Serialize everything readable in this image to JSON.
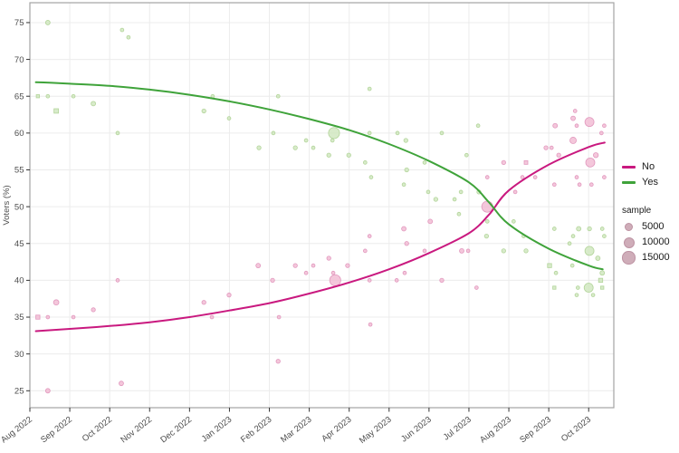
{
  "chart_data": {
    "type": "scatter",
    "title": "",
    "xlabel": "",
    "ylabel": "Voters (%)",
    "x_tick_labels": [
      "Aug 2022",
      "Sep 2022",
      "Oct 2022",
      "Nov 2022",
      "Dec 2022",
      "Jan 2023",
      "Feb 2023",
      "Mar 2023",
      "Apr 2023",
      "May 2023",
      "Jun 2023",
      "Jul 2023",
      "Aug 2023",
      "Sep 2023",
      "Oct 2023"
    ],
    "x_unit": "months since Aug 2022",
    "xlim": [
      0,
      14.63
    ],
    "ylim": [
      22.7,
      77.7
    ],
    "y_ticks": [
      25,
      30,
      35,
      40,
      45,
      50,
      55,
      60,
      65,
      70,
      75
    ],
    "grid": true,
    "legend_position": "right",
    "series": [
      {
        "name": "No",
        "line_color": "#c9197f",
        "point_fill": "#f1b7d1",
        "point_stroke": "#dd8cb6",
        "points": [
          [
            0.2,
            35,
            2500,
            "sq"
          ],
          [
            0.45,
            35,
            1500
          ],
          [
            0.45,
            25,
            2500
          ],
          [
            0.66,
            37,
            3500
          ],
          [
            1.09,
            35,
            1500
          ],
          [
            1.59,
            36,
            2000
          ],
          [
            2.2,
            40,
            1500
          ],
          [
            2.29,
            26,
            2500
          ],
          [
            4.36,
            37,
            2000
          ],
          [
            4.56,
            35,
            1500
          ],
          [
            4.99,
            38,
            2000
          ],
          [
            5.72,
            42,
            2500
          ],
          [
            6.08,
            40,
            2000
          ],
          [
            6.22,
            29,
            2000
          ],
          [
            6.24,
            35,
            1500
          ],
          [
            6.65,
            42,
            2000
          ],
          [
            6.92,
            41,
            1500
          ],
          [
            7.1,
            42,
            1500
          ],
          [
            7.49,
            43,
            2000
          ],
          [
            7.6,
            41,
            1500
          ],
          [
            7.65,
            40,
            15000
          ],
          [
            7.96,
            42,
            2000
          ],
          [
            8.4,
            44,
            1500
          ],
          [
            8.51,
            46,
            1500
          ],
          [
            8.51,
            40,
            1500
          ],
          [
            8.53,
            34,
            1500
          ],
          [
            9.19,
            40,
            1500
          ],
          [
            9.37,
            47,
            2500
          ],
          [
            9.44,
            45,
            2000
          ],
          [
            9.39,
            41,
            1500
          ],
          [
            9.89,
            44,
            1500
          ],
          [
            10.03,
            48,
            2500
          ],
          [
            10.32,
            40,
            2000
          ],
          [
            10.82,
            44,
            2500
          ],
          [
            10.98,
            44,
            1500
          ],
          [
            11.19,
            39,
            1500
          ],
          [
            11.46,
            50,
            15000
          ],
          [
            11.46,
            54,
            1500
          ],
          [
            11.87,
            56,
            2000
          ],
          [
            12.16,
            52,
            1500
          ],
          [
            12.34,
            54,
            1500
          ],
          [
            12.43,
            56,
            2000,
            "sq"
          ],
          [
            12.66,
            54,
            1500
          ],
          [
            12.93,
            58,
            2000
          ],
          [
            13.07,
            58,
            1500
          ],
          [
            13.16,
            61,
            2500
          ],
          [
            13.14,
            53,
            1500
          ],
          [
            13.25,
            57,
            2000
          ],
          [
            13.61,
            62,
            2500
          ],
          [
            13.66,
            63,
            1500
          ],
          [
            13.7,
            61,
            1500
          ],
          [
            13.61,
            59,
            5000
          ],
          [
            13.7,
            54,
            1500
          ],
          [
            13.77,
            53,
            1500
          ],
          [
            14.02,
            61.5,
            10000
          ],
          [
            14.04,
            56,
            10000
          ],
          [
            14.07,
            53,
            1500
          ],
          [
            14.18,
            57,
            3000
          ],
          [
            14.32,
            60,
            1500
          ],
          [
            14.39,
            61,
            1500
          ],
          [
            14.39,
            54,
            1500
          ]
        ],
        "trend": [
          [
            0.15,
            33.1
          ],
          [
            1,
            33.4
          ],
          [
            2,
            33.8
          ],
          [
            3,
            34.3
          ],
          [
            4,
            35.0
          ],
          [
            5,
            35.9
          ],
          [
            6,
            36.9
          ],
          [
            7,
            38.2
          ],
          [
            8,
            39.7
          ],
          [
            9,
            41.5
          ],
          [
            10,
            43.7
          ],
          [
            11,
            46.4
          ],
          [
            11.5,
            48.9
          ],
          [
            12,
            52.2
          ],
          [
            13,
            55.7
          ],
          [
            14,
            58.1
          ],
          [
            14.4,
            58.7
          ]
        ]
      },
      {
        "name": "Yes",
        "line_color": "#3fa33a",
        "point_fill": "#cde5bb",
        "point_stroke": "#a9cf8e",
        "points": [
          [
            0.45,
            75,
            2500
          ],
          [
            0.2,
            65,
            1500,
            "sq"
          ],
          [
            0.45,
            65,
            1500
          ],
          [
            0.66,
            63,
            3000,
            "sq"
          ],
          [
            1.09,
            65,
            1500
          ],
          [
            1.59,
            64,
            2500
          ],
          [
            2.31,
            74,
            1500
          ],
          [
            2.47,
            73,
            1500
          ],
          [
            2.2,
            60,
            1500
          ],
          [
            4.58,
            65,
            1500
          ],
          [
            4.36,
            63,
            2000
          ],
          [
            4.99,
            62,
            1500
          ],
          [
            6.22,
            65,
            1500
          ],
          [
            5.74,
            58,
            2000
          ],
          [
            6.1,
            60,
            1500
          ],
          [
            6.65,
            58,
            2000
          ],
          [
            6.92,
            59,
            1500
          ],
          [
            7.1,
            58,
            1500
          ],
          [
            7.49,
            57,
            2000
          ],
          [
            7.58,
            59,
            1500
          ],
          [
            7.62,
            60,
            15000
          ],
          [
            7.99,
            57,
            2000
          ],
          [
            8.4,
            56,
            1500
          ],
          [
            8.51,
            66,
            1500
          ],
          [
            8.51,
            60,
            1500
          ],
          [
            8.55,
            54,
            1500
          ],
          [
            9.21,
            60,
            1500
          ],
          [
            9.42,
            59,
            2000
          ],
          [
            9.37,
            53,
            1500
          ],
          [
            9.44,
            55,
            2000
          ],
          [
            9.89,
            56,
            1500
          ],
          [
            9.98,
            52,
            1500
          ],
          [
            10.17,
            51,
            2000
          ],
          [
            10.32,
            60,
            1500
          ],
          [
            10.64,
            51,
            1500
          ],
          [
            10.75,
            49,
            1500
          ],
          [
            10.8,
            52,
            1500
          ],
          [
            10.94,
            57,
            1500
          ],
          [
            11.23,
            61,
            1500
          ],
          [
            11.25,
            52,
            2000
          ],
          [
            11.44,
            46,
            2000
          ],
          [
            11.46,
            48,
            1500
          ],
          [
            11.87,
            44,
            2000
          ],
          [
            12.12,
            48,
            1500
          ],
          [
            12.37,
            46,
            1500
          ],
          [
            12.43,
            44,
            2000
          ],
          [
            13.02,
            42,
            2500,
            "sq"
          ],
          [
            13.14,
            47,
            1500
          ],
          [
            13.14,
            39,
            1500,
            "sq"
          ],
          [
            13.18,
            41,
            1500
          ],
          [
            13.52,
            45,
            1500
          ],
          [
            13.59,
            42,
            1500
          ],
          [
            13.61,
            46,
            1500
          ],
          [
            13.7,
            38,
            1500
          ],
          [
            13.73,
            39,
            1500
          ],
          [
            13.75,
            47,
            2500
          ],
          [
            14.0,
            39,
            10000
          ],
          [
            14.02,
            44,
            10000
          ],
          [
            14.02,
            47,
            2000
          ],
          [
            14.11,
            38,
            1500
          ],
          [
            14.23,
            43,
            2500
          ],
          [
            14.3,
            40,
            2500,
            "sq"
          ],
          [
            14.34,
            47,
            1500
          ],
          [
            14.34,
            41,
            2500
          ],
          [
            14.34,
            39,
            1500,
            "sq"
          ],
          [
            14.39,
            46,
            1500
          ]
        ],
        "trend": [
          [
            0.15,
            66.9
          ],
          [
            1,
            66.7
          ],
          [
            2,
            66.4
          ],
          [
            3,
            65.9
          ],
          [
            4,
            65.2
          ],
          [
            5,
            64.3
          ],
          [
            6,
            63.2
          ],
          [
            7,
            61.9
          ],
          [
            8,
            60.4
          ],
          [
            9,
            58.5
          ],
          [
            10,
            56.2
          ],
          [
            11,
            53.3
          ],
          [
            11.5,
            50.6
          ],
          [
            12,
            47.6
          ],
          [
            13,
            44.3
          ],
          [
            14,
            42.0
          ],
          [
            14.35,
            41.5
          ]
        ]
      }
    ],
    "size_legend": {
      "title": "sample",
      "values": [
        "5000",
        "10000",
        "15000"
      ],
      "numeric_values": [
        5000,
        10000,
        15000
      ],
      "swatch_fill": "#cfadb9",
      "swatch_stroke": "#bd93a3"
    },
    "colors": {
      "grid": "#ececec",
      "panel_border": "#a3a3a3",
      "tick": "#333333",
      "tick_label": "#4d4d4d",
      "axis_title": "#4d4d4d",
      "background": "#ffffff"
    }
  }
}
